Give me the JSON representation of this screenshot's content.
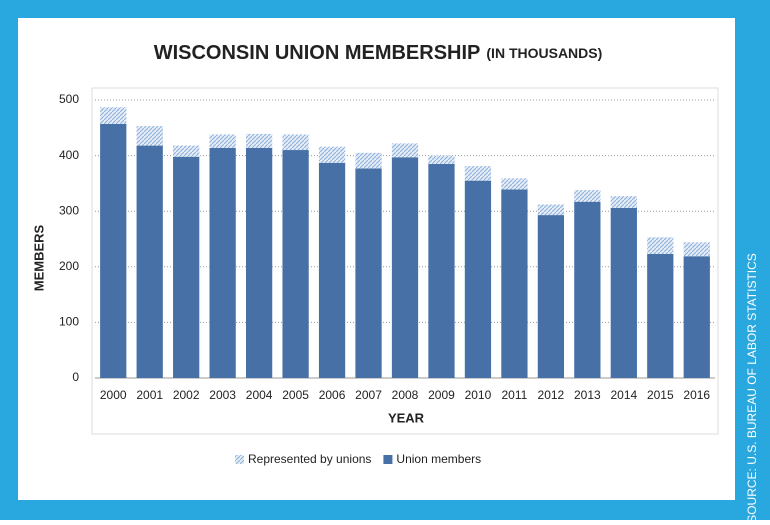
{
  "chart_data": {
    "type": "stacked_bar",
    "title": "WISCONSIN UNION MEMBERSHIP",
    "subtitle": "(IN THOUSANDS)",
    "x_label": "YEAR",
    "y_label": "MEMBERS",
    "source": "SOURCE: U.S. BUREAU OF LABOR STATISTICS",
    "categories": [
      "2000",
      "2001",
      "2002",
      "2003",
      "2004",
      "2005",
      "2006",
      "2007",
      "2008",
      "2009",
      "2010",
      "2011",
      "2012",
      "2013",
      "2014",
      "2015",
      "2016"
    ],
    "series": [
      {
        "name": "Represented by unions",
        "color": "#aac3e4",
        "hatched": true,
        "values": [
          30,
          35,
          20,
          24,
          25,
          28,
          29,
          28,
          25,
          15,
          26,
          20,
          19,
          21,
          21,
          30,
          25
        ]
      },
      {
        "name": "Union members",
        "color": "#4670a6",
        "values": [
          457,
          418,
          398,
          414,
          414,
          410,
          387,
          377,
          397,
          385,
          355,
          339,
          293,
          317,
          306,
          223,
          219
        ]
      }
    ],
    "ylim": [
      0,
      500
    ],
    "yticks": [
      0,
      100,
      200,
      300,
      400,
      500
    ],
    "grid": true
  }
}
